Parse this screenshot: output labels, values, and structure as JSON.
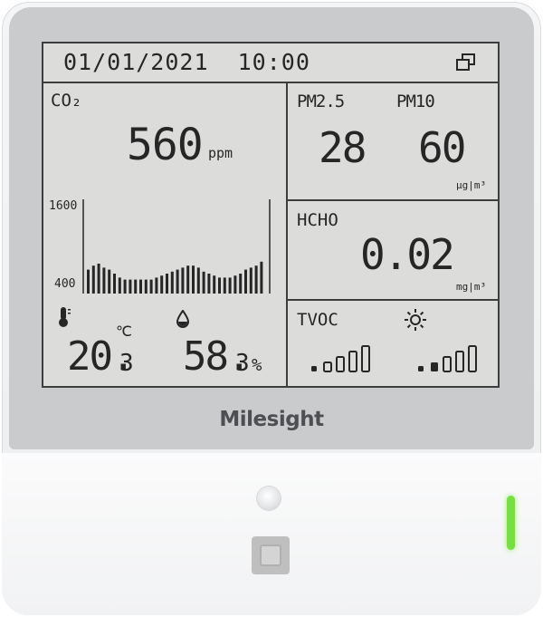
{
  "datetime": "01/01/2021  10:00",
  "co2": {
    "label": "CO₂",
    "value": "560",
    "unit": "ppm",
    "graph_max": "1600",
    "graph_min": "400",
    "bars": [
      12,
      14,
      15,
      13,
      12,
      10,
      8,
      7,
      7,
      7,
      7,
      7,
      7,
      8,
      9,
      10,
      11,
      12,
      13,
      14,
      14,
      13,
      11,
      10,
      9,
      8,
      8,
      8,
      9,
      10,
      12,
      13,
      14,
      16
    ]
  },
  "pm": {
    "label_25": "PM2.5",
    "label_10": "PM10",
    "value_25": "28",
    "value_10": "60",
    "unit": "μg|m³"
  },
  "hcho": {
    "label": "HCHO",
    "value": "0.02",
    "unit": "mg|m³"
  },
  "temperature": {
    "int": "20.",
    "dec": "3",
    "unit": "℃"
  },
  "humidity": {
    "int": "58.",
    "dec": "3",
    "unit": "%"
  },
  "tvoc": {
    "label": "TVOC",
    "level": 1
  },
  "light": {
    "level": 2
  },
  "brand": "Milesight",
  "colors": {
    "lcd_bg": "#dcdcdb",
    "segment": "#262626",
    "led": "#74e23c",
    "frame": "#c9cbcc"
  }
}
